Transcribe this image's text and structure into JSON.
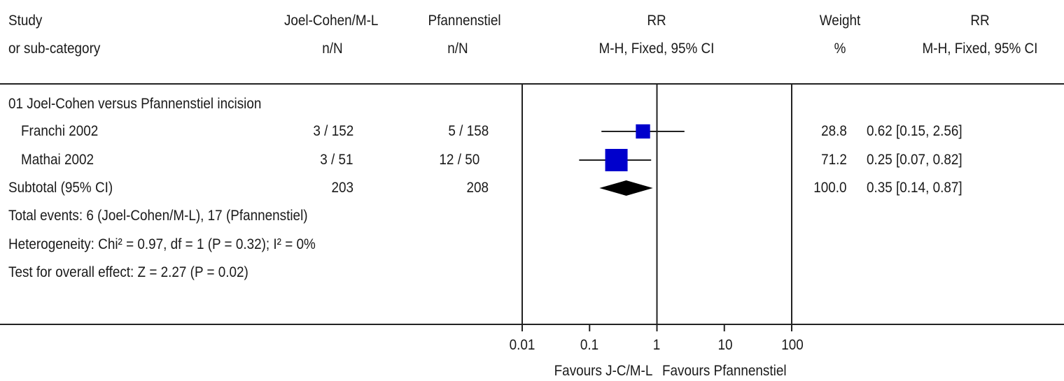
{
  "header": {
    "col_study": [
      "Study",
      "or sub-category"
    ],
    "col_treat": [
      "Joel-Cohen/M-L",
      "n/N"
    ],
    "col_ctrl": [
      "Pfannenstiel",
      "n/N"
    ],
    "col_rr": [
      "RR",
      "M-H, Fixed, 95% CI"
    ],
    "col_weight": [
      "Weight",
      "%"
    ],
    "col_rr_text": [
      "RR",
      "M-H, Fixed, 95% CI"
    ]
  },
  "group_title": "01 Joel-Cohen versus Pfannenstiel incision",
  "studies": [
    {
      "name": "Franchi 2002",
      "treat": "3 / 152",
      "ctrl": "5 / 158",
      "weight": "28.8",
      "rr_text": "0.62 [0.15, 2.56]"
    },
    {
      "name": "Mathai 2002",
      "treat": "3 / 51",
      "ctrl": "12 / 50",
      "weight": "71.2",
      "rr_text": "0.25 [0.07, 0.82]"
    }
  ],
  "subtotal": {
    "name": "Subtotal (95% CI)",
    "treat": "203",
    "ctrl": "208",
    "weight": "100.0",
    "rr_text": "0.35 [0.14, 0.87]"
  },
  "notes": [
    "Total events: 6 (Joel-Cohen/M-L), 17 (Pfannenstiel)",
    "Heterogeneity: Chi² = 0.97, df = 1 (P = 0.32); I² = 0%",
    "Test for overall effect: Z = 2.27 (P = 0.02)"
  ],
  "axis": {
    "ticks": [
      "0.01",
      "0.1",
      "1",
      "10",
      "100"
    ],
    "favours_left": "Favours J-C/M-L",
    "favours_right": "Favours Pfannenstiel"
  },
  "colors": {
    "square": "#0000cc",
    "diamond": "#000000",
    "line": "#222222"
  },
  "chart_data": {
    "type": "forest",
    "scale": "log",
    "xlim": [
      0.01,
      100
    ],
    "reference_line": 1,
    "studies": [
      {
        "name": "Franchi 2002",
        "rr": 0.62,
        "ci": [
          0.15,
          2.56
        ],
        "weight": 28.8
      },
      {
        "name": "Mathai 2002",
        "rr": 0.25,
        "ci": [
          0.07,
          0.82
        ],
        "weight": 71.2
      }
    ],
    "pooled": {
      "name": "Subtotal (95% CI)",
      "rr": 0.35,
      "ci": [
        0.14,
        0.87
      ]
    }
  }
}
